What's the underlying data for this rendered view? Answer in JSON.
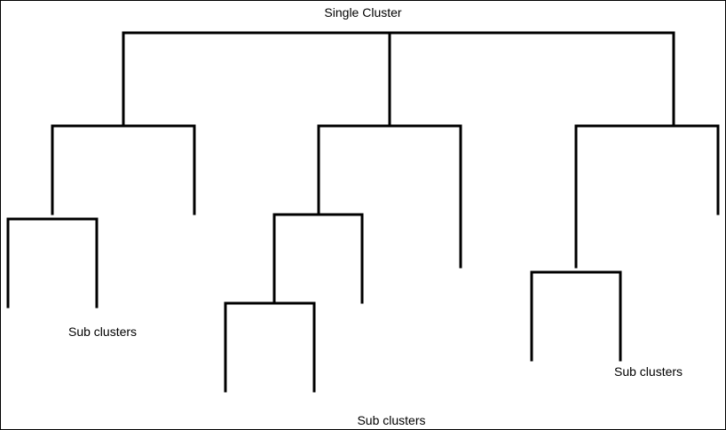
{
  "title": "Single Cluster",
  "labels": {
    "left": "Sub clusters",
    "middle": "Sub clusters",
    "right": "Sub clusters"
  },
  "colors": {
    "line": "#000000",
    "background": "#ffffff"
  }
}
